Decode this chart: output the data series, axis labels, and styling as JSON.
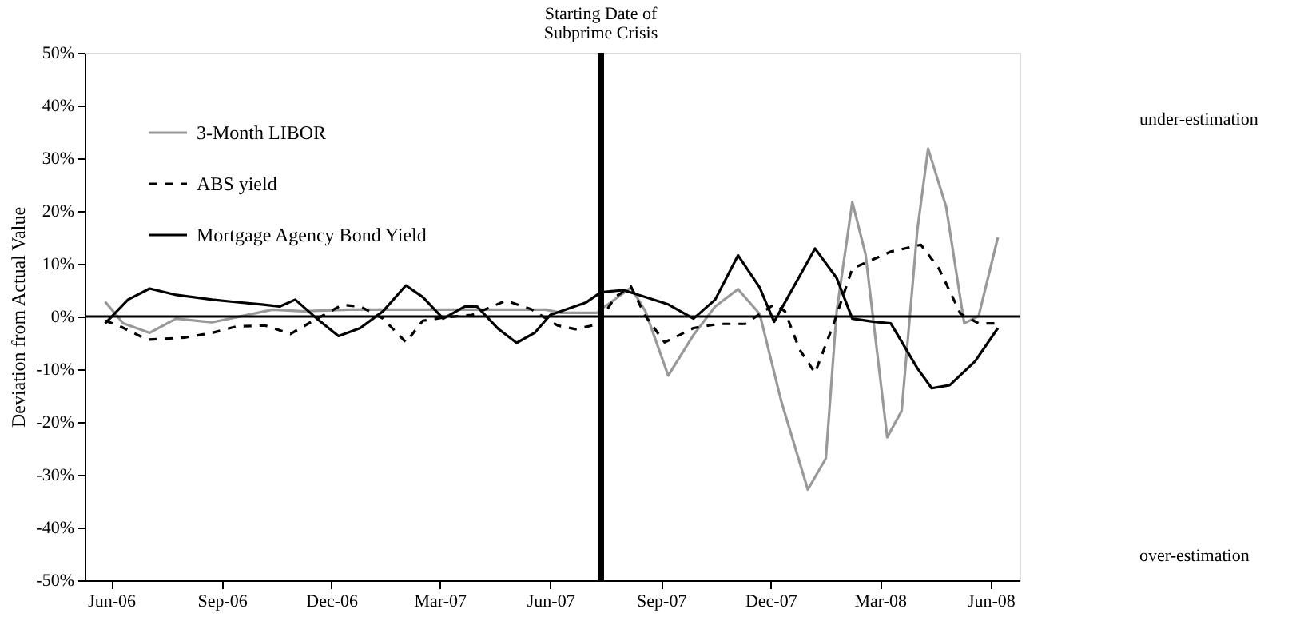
{
  "chart_data": {
    "type": "line",
    "ylabel": "Deviation from Actual Value",
    "xlim": [
      "2006-05-10",
      "2008-06-25"
    ],
    "xticks": [
      {
        "value": "2006-06-01",
        "label": "Jun-06"
      },
      {
        "value": "2006-09-01",
        "label": "Sep-06"
      },
      {
        "value": "2006-12-01",
        "label": "Dec-06"
      },
      {
        "value": "2007-03-01",
        "label": "Mar-07"
      },
      {
        "value": "2007-06-01",
        "label": "Jun-07"
      },
      {
        "value": "2007-09-01",
        "label": "Sep-07"
      },
      {
        "value": "2007-12-01",
        "label": "Dec-07"
      },
      {
        "value": "2008-03-01",
        "label": "Mar-08"
      },
      {
        "value": "2008-06-01",
        "label": "Jun-08"
      }
    ],
    "ylim": [
      -50,
      50
    ],
    "yticks": [
      {
        "value": -50,
        "label": "-50%"
      },
      {
        "value": -40,
        "label": "-40%"
      },
      {
        "value": -30,
        "label": "-30%"
      },
      {
        "value": -20,
        "label": "-20%"
      },
      {
        "value": -10,
        "label": "-10%"
      },
      {
        "value": 0,
        "label": "0%"
      },
      {
        "value": 10,
        "label": "10%"
      },
      {
        "value": 20,
        "label": "20%"
      },
      {
        "value": 30,
        "label": "30%"
      },
      {
        "value": 40,
        "label": "40%"
      },
      {
        "value": 50,
        "label": "50%"
      }
    ],
    "grid": false,
    "legend": "top left",
    "marker": "none",
    "series": [
      {
        "name": "3-Month LIBOR",
        "color": "#999999",
        "line_style": "solid",
        "x": [
          "2006-05-27",
          "2006-06-11",
          "2006-07-03",
          "2006-07-25",
          "2006-08-24",
          "2006-09-18",
          "2006-10-13",
          "2006-11-07",
          "2006-12-16",
          "2007-03-07",
          "2007-05-28",
          "2007-06-10",
          "2007-07-10",
          "2007-07-16",
          "2007-07-19",
          "2007-08-07",
          "2007-08-19",
          "2007-09-07",
          "2007-09-28",
          "2007-10-16",
          "2007-11-04",
          "2007-11-22",
          "2007-12-10",
          "2008-01-01",
          "2008-01-16",
          "2008-01-25",
          "2008-02-07",
          "2008-02-18",
          "2008-03-07",
          "2008-03-19",
          "2008-04-01",
          "2008-04-10",
          "2008-04-25",
          "2008-05-10",
          "2008-05-22",
          "2008-06-07"
        ],
        "values": [
          2.8,
          -1.3,
          -3.1,
          -0.4,
          -1.1,
          0.1,
          1.3,
          1.0,
          1.3,
          1.3,
          1.3,
          0.7,
          0.7,
          1.9,
          2.3,
          5.5,
          1.0,
          -11.2,
          -3.5,
          1.9,
          5.2,
          0.5,
          -16.1,
          -32.8,
          -26.9,
          1.0,
          21.7,
          11.8,
          -22.9,
          -17.9,
          16.3,
          31.8,
          20.8,
          -1.3,
          0.1,
          15.0
        ]
      },
      {
        "name": "ABS yield",
        "color": "#000000",
        "line_style": "dashed",
        "x": [
          "2006-05-27",
          "2006-06-07",
          "2006-07-01",
          "2006-08-01",
          "2006-08-24",
          "2006-09-13",
          "2006-10-07",
          "2006-10-28",
          "2006-11-16",
          "2006-12-10",
          "2006-12-25",
          "2007-01-13",
          "2007-02-01",
          "2007-02-15",
          "2007-03-07",
          "2007-03-28",
          "2007-04-25",
          "2007-05-16",
          "2007-06-07",
          "2007-06-22",
          "2007-07-10",
          "2007-07-25",
          "2007-08-07",
          "2007-08-19",
          "2007-09-04",
          "2007-09-28",
          "2007-10-19",
          "2007-11-10",
          "2007-12-04",
          "2007-12-13",
          "2007-12-25",
          "2008-01-07",
          "2008-01-22",
          "2008-02-07",
          "2008-03-10",
          "2008-04-04",
          "2008-04-19",
          "2008-05-07",
          "2008-05-22",
          "2008-06-07"
        ],
        "values": [
          -0.8,
          -1.7,
          -4.4,
          -4.0,
          -3.1,
          -1.9,
          -1.7,
          -3.3,
          -0.8,
          2.2,
          1.9,
          -0.4,
          -4.9,
          -0.8,
          -0.1,
          0.3,
          3.0,
          1.4,
          -1.7,
          -2.4,
          -1.5,
          3.7,
          5.7,
          0.1,
          -4.9,
          -2.2,
          -1.4,
          -1.4,
          2.3,
          1.0,
          -6.2,
          -10.7,
          -1.7,
          9.1,
          12.3,
          13.6,
          9.1,
          0.5,
          -1.3,
          -1.3
        ]
      },
      {
        "name": "Mortgage Agency Bond Yield",
        "color": "#000000",
        "line_style": "solid",
        "x": [
          "2006-05-27",
          "2006-06-15",
          "2006-07-03",
          "2006-07-25",
          "2006-08-24",
          "2006-09-10",
          "2006-10-04",
          "2006-10-19",
          "2006-11-01",
          "2006-11-19",
          "2006-12-07",
          "2006-12-25",
          "2007-01-13",
          "2007-02-01",
          "2007-02-15",
          "2007-03-04",
          "2007-03-22",
          "2007-04-01",
          "2007-04-19",
          "2007-05-04",
          "2007-05-19",
          "2007-06-01",
          "2007-07-01",
          "2007-07-13",
          "2007-08-01",
          "2007-09-07",
          "2007-09-28",
          "2007-10-16",
          "2007-11-04",
          "2007-11-22",
          "2007-12-04",
          "2008-01-07",
          "2008-01-25",
          "2008-02-07",
          "2008-02-25",
          "2008-03-10",
          "2008-04-01",
          "2008-04-13",
          "2008-04-28",
          "2008-05-19",
          "2008-06-07"
        ],
        "values": [
          -1.3,
          3.2,
          5.3,
          4.1,
          3.2,
          2.8,
          2.3,
          1.9,
          3.2,
          -0.4,
          -3.7,
          -2.2,
          1.0,
          5.9,
          3.7,
          -0.4,
          1.9,
          1.9,
          -2.4,
          -5.0,
          -3.1,
          0.3,
          2.7,
          4.6,
          5.0,
          2.3,
          -0.4,
          3.2,
          11.6,
          5.5,
          -1.0,
          12.9,
          7.3,
          -0.4,
          -1.0,
          -1.3,
          -9.8,
          -13.6,
          -13.0,
          -8.5,
          -2.2
        ]
      }
    ],
    "ref_lines": [
      {
        "axis": "y",
        "value": 0,
        "label": null,
        "color": "#000000"
      },
      {
        "axis": "x",
        "value": "2007-07-13",
        "label": "Starting Date of\nSubprime Crisis",
        "color": "#000000"
      }
    ],
    "annotations": [
      "under-estimation",
      "over-estimation"
    ]
  }
}
